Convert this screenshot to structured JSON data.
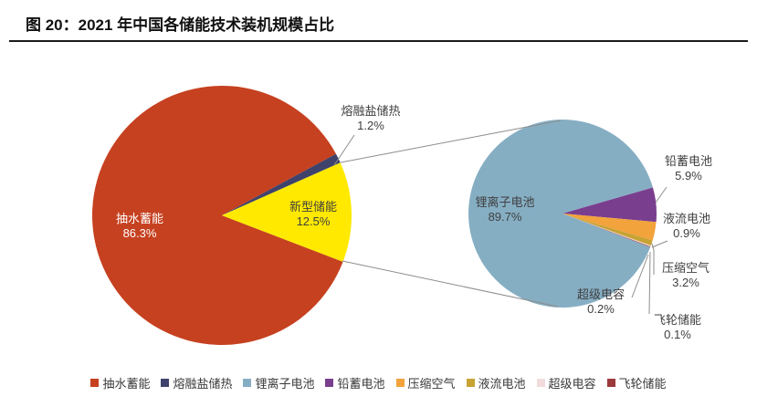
{
  "title": "图 20：2021 年中国各储能技术装机规模占比",
  "chart_data": {
    "type": "pie",
    "subtype": "pie-of-pie",
    "title": "2021 年中国各储能技术装机规模占比",
    "unit": "percent",
    "legend_position": "bottom",
    "grid": false,
    "pies": [
      {
        "name": "储能技术装机总占比",
        "slices": [
          {
            "id": "pumped-hydro",
            "label": "抽水蓄能",
            "value": 86.3,
            "pct_label": "86.3%",
            "color": "#C64120"
          },
          {
            "id": "molten-salt",
            "label": "熔融盐储热",
            "value": 1.2,
            "pct_label": "1.2%",
            "color": "#3F436B"
          },
          {
            "id": "new-type",
            "label": "新型储能",
            "value": 12.5,
            "pct_label": "12.5%",
            "color": "#FFE900"
          }
        ]
      },
      {
        "name": "新型储能细分占比",
        "slices": [
          {
            "id": "lithium-ion",
            "label": "锂离子电池",
            "value": 89.7,
            "pct_label": "89.7%",
            "color": "#86AEC3"
          },
          {
            "id": "lead-acid",
            "label": "铅蓄电池",
            "value": 5.9,
            "pct_label": "5.9%",
            "color": "#7A3E8F"
          },
          {
            "id": "compressed-air",
            "label": "压缩空气",
            "value": 3.2,
            "pct_label": "3.2%",
            "color": "#F2A33C"
          },
          {
            "id": "flow-battery",
            "label": "液流电池",
            "value": 0.9,
            "pct_label": "0.9%",
            "color": "#C7A334"
          },
          {
            "id": "supercapacitor",
            "label": "超级电容",
            "value": 0.2,
            "pct_label": "0.2%",
            "color": "#F2DCDB"
          },
          {
            "id": "flywheel",
            "label": "飞轮储能",
            "value": 0.1,
            "pct_label": "0.1%",
            "color": "#9B3A3C"
          }
        ]
      }
    ],
    "legend": [
      {
        "label": "抽水蓄能",
        "color": "#C64120"
      },
      {
        "label": "熔融盐储热",
        "color": "#3F436B"
      },
      {
        "label": "锂离子电池",
        "color": "#86AEC3"
      },
      {
        "label": "铅蓄电池",
        "color": "#7A3E8F"
      },
      {
        "label": "压缩空气",
        "color": "#F2A33C"
      },
      {
        "label": "液流电池",
        "color": "#C7A334"
      },
      {
        "label": "超级电容",
        "color": "#F2DCDB"
      },
      {
        "label": "飞轮储能",
        "color": "#9B3A3C"
      }
    ]
  }
}
